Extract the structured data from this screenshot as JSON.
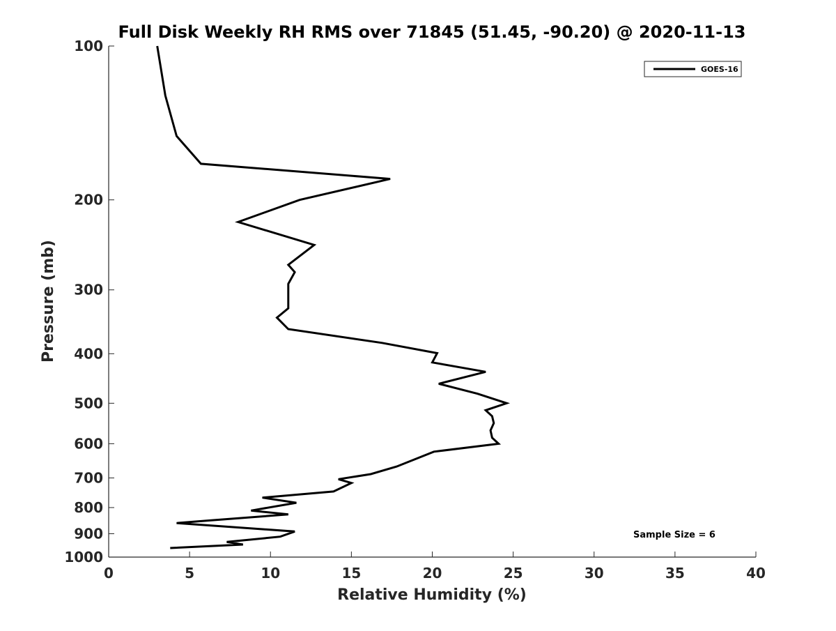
{
  "chart_data": {
    "type": "line",
    "title": "Full Disk Weekly RH RMS over 71845 (51.45, -90.20) @ 2020-11-13",
    "xlabel": "Relative Humidity (%)",
    "ylabel": "Pressure (mb)",
    "xlim": [
      0,
      40
    ],
    "ylim": [
      100,
      1000
    ],
    "yscale": "log",
    "yreversed": true,
    "xticks": [
      0,
      5,
      10,
      15,
      20,
      25,
      30,
      35,
      40
    ],
    "yticks": [
      100,
      200,
      300,
      400,
      500,
      600,
      700,
      800,
      900,
      1000
    ],
    "grid": false,
    "legend_position": "top-right",
    "annotation": "Sample Size = 6",
    "series": [
      {
        "name": "GOES-16",
        "color": "#000000",
        "points": [
          [
            3.0,
            100
          ],
          [
            3.5,
            125
          ],
          [
            4.2,
            150
          ],
          [
            5.7,
            170
          ],
          [
            17.4,
            182
          ],
          [
            11.8,
            200
          ],
          [
            8.0,
            221
          ],
          [
            12.7,
            245
          ],
          [
            11.1,
            268
          ],
          [
            11.5,
            277
          ],
          [
            11.1,
            292
          ],
          [
            11.1,
            312
          ],
          [
            11.1,
            326
          ],
          [
            10.4,
            340
          ],
          [
            11.1,
            358
          ],
          [
            16.9,
            381
          ],
          [
            20.3,
            399
          ],
          [
            20.0,
            416
          ],
          [
            23.3,
            434
          ],
          [
            20.4,
            458
          ],
          [
            22.8,
            479
          ],
          [
            24.6,
            500
          ],
          [
            23.3,
            516
          ],
          [
            23.7,
            530
          ],
          [
            23.8,
            547
          ],
          [
            23.6,
            565
          ],
          [
            23.7,
            584
          ],
          [
            24.1,
            600
          ],
          [
            20.1,
            622
          ],
          [
            17.8,
            665
          ],
          [
            16.2,
            688
          ],
          [
            14.2,
            704
          ],
          [
            15.0,
            716
          ],
          [
            13.9,
            744
          ],
          [
            9.5,
            765
          ],
          [
            11.6,
            783
          ],
          [
            8.8,
            811
          ],
          [
            11.1,
            825
          ],
          [
            6.2,
            848
          ],
          [
            4.2,
            858
          ],
          [
            11.5,
            891
          ],
          [
            10.6,
            912
          ],
          [
            7.3,
            934
          ],
          [
            8.3,
            945
          ],
          [
            3.8,
            960
          ]
        ]
      }
    ]
  }
}
